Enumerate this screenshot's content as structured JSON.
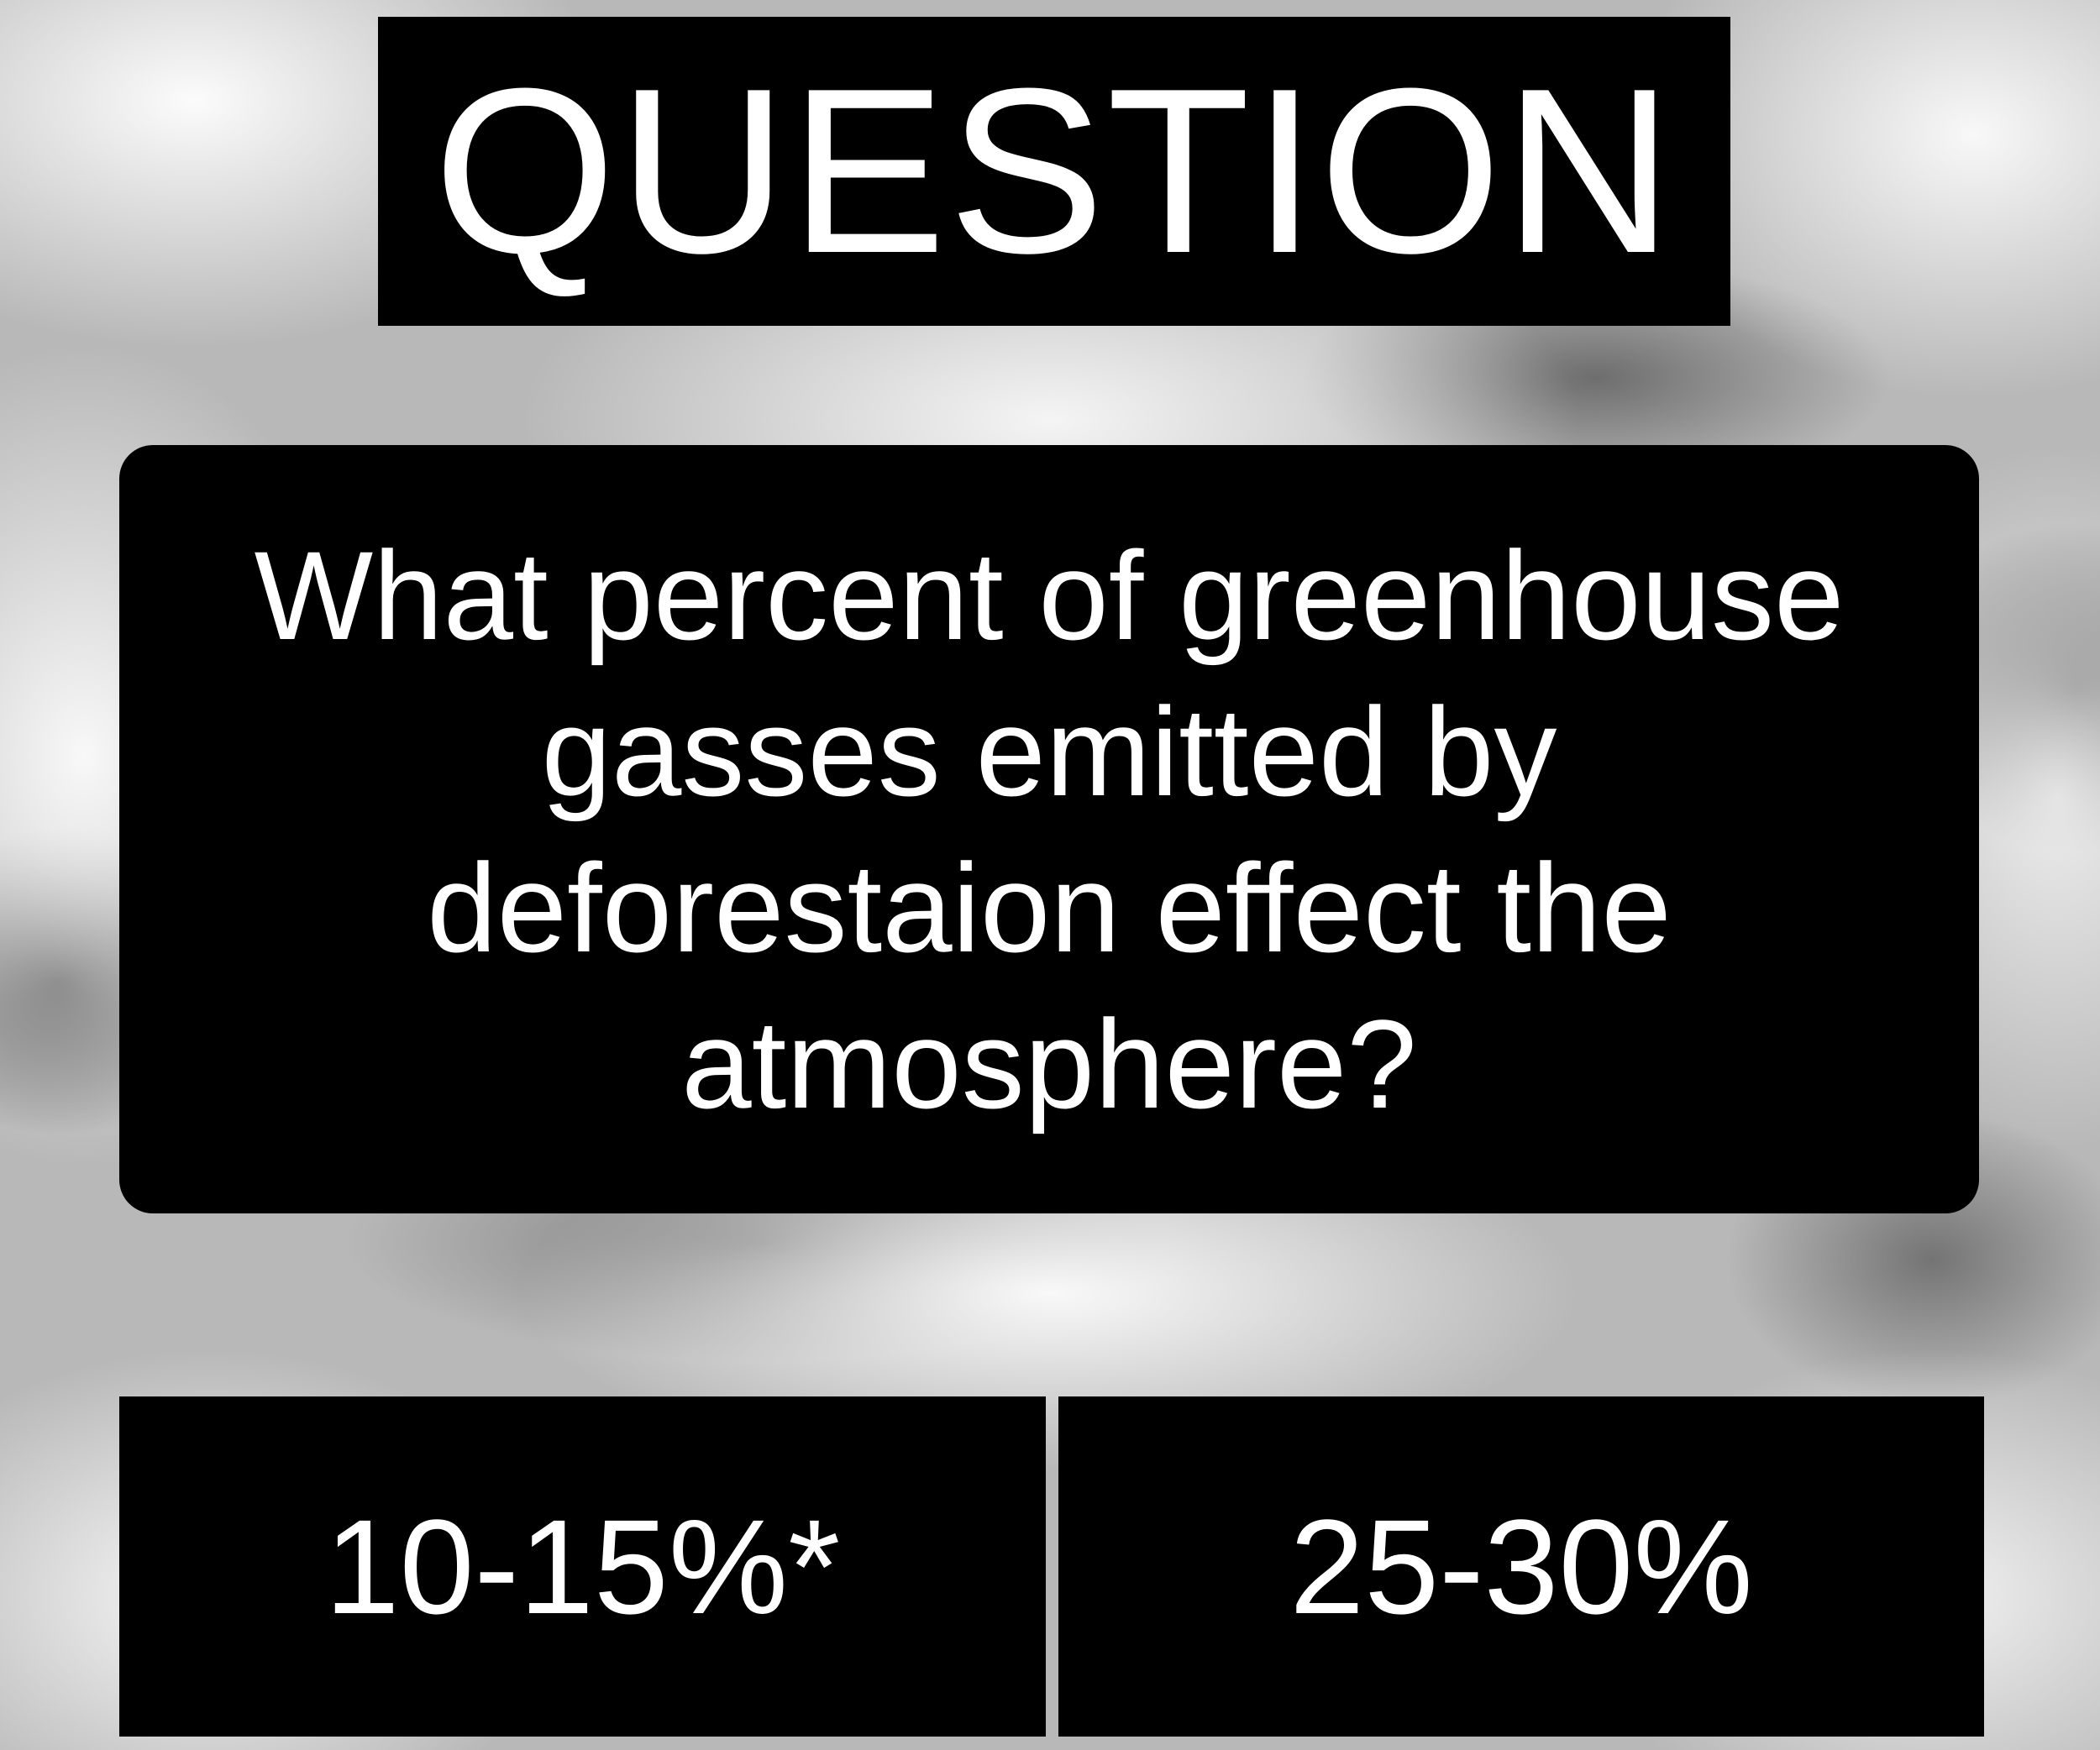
{
  "title": "QUESTION",
  "question": {
    "text": "What percent of greenhouse gasses emitted by deforestaion effect the atmosphere?"
  },
  "answers": [
    {
      "label": "10-15%*"
    },
    {
      "label": "25-30%"
    }
  ],
  "colors": {
    "panel": "#000000",
    "text": "#ffffff",
    "background": "#b8b8b8"
  }
}
